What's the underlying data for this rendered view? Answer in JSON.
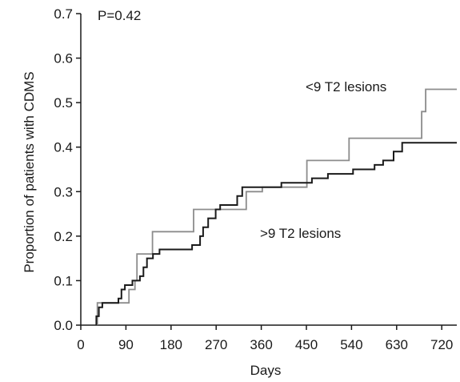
{
  "chart_data": {
    "type": "line",
    "step": true,
    "xlabel": "Days",
    "ylabel": "Proportion of patients with CDMS",
    "xlim": [
      0,
      750
    ],
    "ylim": [
      0,
      0.7
    ],
    "xticks": [
      0,
      90,
      180,
      270,
      360,
      450,
      540,
      630,
      720
    ],
    "yticks": [
      "0.0",
      "0.1",
      "0.2",
      "0.3",
      "0.4",
      "0.5",
      "0.6",
      "0.7"
    ],
    "grid": false,
    "annotations": {
      "pvalue": "P=0.42",
      "series_lt9": "<9 T2 lesions",
      "series_gt9": ">9 T2 lesions"
    },
    "series": [
      {
        "name": "<9 T2 lesions",
        "color": "#8c8c8c",
        "points": [
          [
            33,
            0
          ],
          [
            33,
            0.05
          ],
          [
            66,
            0.05
          ],
          [
            96,
            0.05
          ],
          [
            96,
            0.08
          ],
          [
            108,
            0.08
          ],
          [
            108,
            0.1
          ],
          [
            112,
            0.1
          ],
          [
            112,
            0.16
          ],
          [
            143,
            0.16
          ],
          [
            143,
            0.21
          ],
          [
            225,
            0.21
          ],
          [
            225,
            0.26
          ],
          [
            330,
            0.26
          ],
          [
            330,
            0.3
          ],
          [
            362,
            0.3
          ],
          [
            362,
            0.31
          ],
          [
            451,
            0.31
          ],
          [
            451,
            0.37
          ],
          [
            535,
            0.37
          ],
          [
            535,
            0.42
          ],
          [
            680,
            0.42
          ],
          [
            680,
            0.48
          ],
          [
            688,
            0.48
          ],
          [
            688,
            0.53
          ],
          [
            750,
            0.53
          ]
        ]
      },
      {
        "name": ">9 T2 lesions",
        "color": "#1a1a1a",
        "points": [
          [
            31,
            0
          ],
          [
            31,
            0.02
          ],
          [
            36,
            0.02
          ],
          [
            36,
            0.04
          ],
          [
            43,
            0.04
          ],
          [
            43,
            0.05
          ],
          [
            75,
            0.05
          ],
          [
            75,
            0.06
          ],
          [
            81,
            0.06
          ],
          [
            81,
            0.08
          ],
          [
            88,
            0.08
          ],
          [
            88,
            0.09
          ],
          [
            103,
            0.09
          ],
          [
            103,
            0.1
          ],
          [
            118,
            0.1
          ],
          [
            118,
            0.11
          ],
          [
            125,
            0.11
          ],
          [
            125,
            0.13
          ],
          [
            132,
            0.13
          ],
          [
            132,
            0.15
          ],
          [
            144,
            0.15
          ],
          [
            144,
            0.16
          ],
          [
            157,
            0.16
          ],
          [
            157,
            0.17
          ],
          [
            222,
            0.17
          ],
          [
            222,
            0.18
          ],
          [
            238,
            0.18
          ],
          [
            238,
            0.2
          ],
          [
            244,
            0.2
          ],
          [
            244,
            0.22
          ],
          [
            254,
            0.22
          ],
          [
            254,
            0.24
          ],
          [
            269,
            0.24
          ],
          [
            269,
            0.26
          ],
          [
            278,
            0.26
          ],
          [
            278,
            0.27
          ],
          [
            312,
            0.27
          ],
          [
            312,
            0.29
          ],
          [
            322,
            0.29
          ],
          [
            322,
            0.31
          ],
          [
            400,
            0.31
          ],
          [
            400,
            0.32
          ],
          [
            437,
            0.32
          ],
          [
            437,
            0.32
          ],
          [
            461,
            0.32
          ],
          [
            461,
            0.33
          ],
          [
            493,
            0.33
          ],
          [
            493,
            0.34
          ],
          [
            543,
            0.34
          ],
          [
            543,
            0.35
          ],
          [
            586,
            0.35
          ],
          [
            586,
            0.36
          ],
          [
            603,
            0.36
          ],
          [
            603,
            0.37
          ],
          [
            624,
            0.37
          ],
          [
            624,
            0.39
          ],
          [
            641,
            0.39
          ],
          [
            641,
            0.41
          ],
          [
            750,
            0.41
          ]
        ]
      }
    ]
  }
}
